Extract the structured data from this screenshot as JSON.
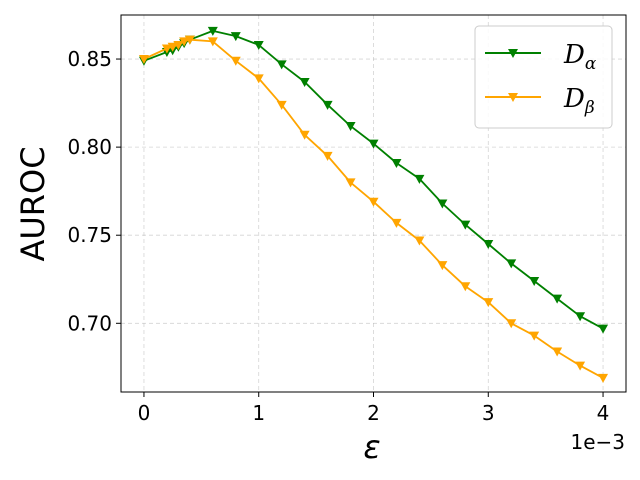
{
  "chart_data": {
    "type": "line",
    "title": "",
    "xlabel": "ε",
    "ylabel": "AUROC",
    "x_offset_label": "1e−3",
    "xlim": [
      -0.2,
      4.2
    ],
    "ylim": [
      0.661,
      0.875
    ],
    "xticks": [
      0,
      1,
      2,
      3,
      4
    ],
    "xtick_labels": [
      "0",
      "1",
      "2",
      "3",
      "4"
    ],
    "yticks": [
      0.7,
      0.75,
      0.8,
      0.85
    ],
    "ytick_labels": [
      "0.70",
      "0.75",
      "0.80",
      "0.85"
    ],
    "grid": true,
    "legend_position": "top-right",
    "x_units_multiplier": 0.001,
    "series": [
      {
        "name": "D_α",
        "legend_main": "D",
        "legend_sub": "α",
        "color": "#008000",
        "marker": "triangle-down",
        "x": [
          0,
          0.2,
          0.25,
          0.3,
          0.35,
          0.4,
          0.6,
          0.8,
          1.0,
          1.2,
          1.4,
          1.6,
          1.8,
          2.0,
          2.2,
          2.4,
          2.6,
          2.8,
          3.0,
          3.2,
          3.4,
          3.6,
          3.8,
          4.0
        ],
        "y": [
          0.849,
          0.854,
          0.855,
          0.857,
          0.859,
          0.861,
          0.866,
          0.863,
          0.858,
          0.847,
          0.837,
          0.824,
          0.812,
          0.802,
          0.791,
          0.782,
          0.768,
          0.756,
          0.745,
          0.734,
          0.724,
          0.714,
          0.704,
          0.697
        ]
      },
      {
        "name": "D_β",
        "legend_main": "D",
        "legend_sub": "β",
        "color": "#FFA500",
        "marker": "triangle-down",
        "x": [
          0,
          0.2,
          0.25,
          0.3,
          0.35,
          0.4,
          0.6,
          0.8,
          1.0,
          1.2,
          1.4,
          1.6,
          1.8,
          2.0,
          2.2,
          2.4,
          2.6,
          2.8,
          3.0,
          3.2,
          3.4,
          3.6,
          3.8,
          4.0
        ],
        "y": [
          0.85,
          0.856,
          0.857,
          0.858,
          0.86,
          0.861,
          0.86,
          0.849,
          0.839,
          0.824,
          0.807,
          0.795,
          0.78,
          0.769,
          0.757,
          0.747,
          0.733,
          0.721,
          0.712,
          0.7,
          0.693,
          0.684,
          0.676,
          0.669
        ]
      }
    ]
  }
}
